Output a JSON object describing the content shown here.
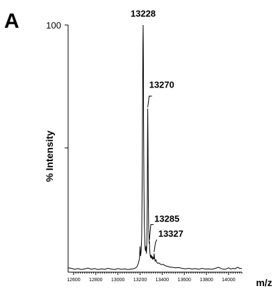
{
  "panel_label": "A",
  "chart_data": {
    "type": "line",
    "title": "",
    "xlabel": "m/z",
    "ylabel": "% Intensity",
    "xlim": [
      12550,
      14120
    ],
    "ylim": [
      0,
      100
    ],
    "x_ticks": [
      12600,
      12800,
      13000,
      13200,
      13400,
      13600,
      13800,
      14000
    ],
    "x_tick_labels": [
      "12600",
      "12800",
      "13000",
      "13200",
      "13400",
      "13600",
      "13800",
      "14000"
    ],
    "y_ticks": [
      50,
      100
    ],
    "y_tick_labels": [
      "",
      "100"
    ],
    "grid": false,
    "legend": "none",
    "series": [
      {
        "x": [
          12550,
          12580,
          12610,
          12640,
          12670,
          12700,
          12730,
          12760,
          12790,
          12820,
          12850,
          12880,
          12910,
          12940,
          12970,
          13000,
          13030,
          13060,
          13090,
          13120,
          13150,
          13170,
          13185,
          13195,
          13200,
          13205,
          13210,
          13215,
          13220,
          13224,
          13226,
          13228,
          13230,
          13232,
          13235,
          13238,
          13242,
          13246,
          13250,
          13254,
          13258,
          13262,
          13266,
          13268,
          13270,
          13272,
          13275,
          13278,
          13282,
          13285,
          13288,
          13292,
          13296,
          13300,
          13305,
          13310,
          13315,
          13320,
          13324,
          13327,
          13331,
          13336,
          13342,
          13350,
          13360,
          13370,
          13380,
          13395,
          13410,
          13430,
          13450,
          13470,
          13490,
          13520,
          13550,
          13580,
          13610,
          13640,
          13670,
          13700,
          13730,
          13760,
          13790,
          13820,
          13850,
          13880,
          13910,
          13940,
          13970,
          14000,
          14020,
          14040,
          14060,
          14080,
          14100,
          14120
        ],
        "y": [
          1.2,
          1.0,
          0.6,
          0.9,
          0.5,
          0.8,
          1.1,
          0.6,
          0.9,
          0.5,
          0.8,
          0.6,
          1.0,
          0.7,
          0.5,
          0.9,
          0.6,
          0.8,
          0.5,
          0.7,
          0.9,
          1.5,
          3.0,
          5.0,
          10.0,
          6.0,
          8.0,
          14.0,
          40.0,
          75.0,
          92.0,
          100.0,
          85.0,
          60.0,
          35.0,
          20.0,
          14.0,
          9.0,
          8.0,
          10.0,
          7.0,
          12.0,
          30.0,
          55.0,
          66.0,
          50.0,
          30.0,
          18.0,
          11.0,
          12.0,
          8.0,
          6.0,
          5.5,
          6.5,
          5.0,
          6.0,
          4.5,
          5.5,
          4.8,
          7.0,
          5.0,
          4.0,
          4.5,
          3.5,
          3.0,
          3.2,
          2.8,
          2.5,
          2.6,
          2.0,
          1.8,
          1.5,
          1.4,
          1.2,
          1.3,
          1.0,
          0.8,
          1.0,
          0.7,
          0.9,
          0.6,
          1.0,
          0.7,
          0.8,
          0.6,
          1.0,
          1.4,
          0.8,
          0.6,
          1.2,
          0.7,
          1.0,
          0.8,
          1.4,
          1.0,
          0.9
        ]
      }
    ],
    "annotations": [
      {
        "text": "13228",
        "x": 13228,
        "y": 100
      },
      {
        "text": "13270",
        "x": 13270,
        "y": 66
      },
      {
        "text": "13285",
        "x": 13285,
        "y": 12
      },
      {
        "text": "13327",
        "x": 13327,
        "y": 7
      }
    ]
  }
}
